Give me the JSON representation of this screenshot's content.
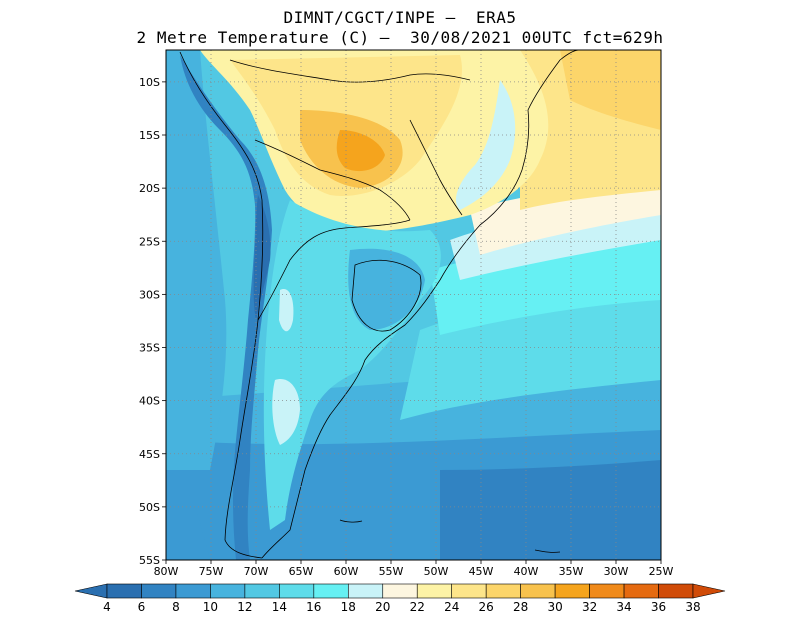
{
  "header": {
    "line1": "DIMNT/CGCT/INPE –  ERA5",
    "line2": "2 Metre Temperature (C) –  30/08/2021 00UTC fct=629h"
  },
  "map": {
    "lon_labels": [
      "80W",
      "75W",
      "70W",
      "65W",
      "60W",
      "55W",
      "50W",
      "45W",
      "40W",
      "35W",
      "30W",
      "25W"
    ],
    "lat_labels": [
      "10S",
      "15S",
      "20S",
      "25S",
      "30S",
      "35S",
      "40S",
      "45S",
      "50S",
      "55S"
    ],
    "lon_range": [
      -80,
      -25
    ],
    "lat_range": [
      -55,
      -7
    ],
    "grid": "dotted"
  },
  "colorbar": {
    "labels": [
      "4",
      "6",
      "8",
      "10",
      "12",
      "14",
      "16",
      "18",
      "20",
      "22",
      "24",
      "26",
      "28",
      "30",
      "32",
      "34",
      "36",
      "38"
    ],
    "colors": [
      "#2a6fb0",
      "#3183c2",
      "#3b9ad3",
      "#47b3de",
      "#52c8e3",
      "#5edcea",
      "#66f0f3",
      "#c9f3f8",
      "#fdf6e0",
      "#fdf3a6",
      "#fde58a",
      "#fcd56a",
      "#f8c24d",
      "#f5a41d",
      "#f08a1a",
      "#e56a10",
      "#d04b08"
    ]
  }
}
